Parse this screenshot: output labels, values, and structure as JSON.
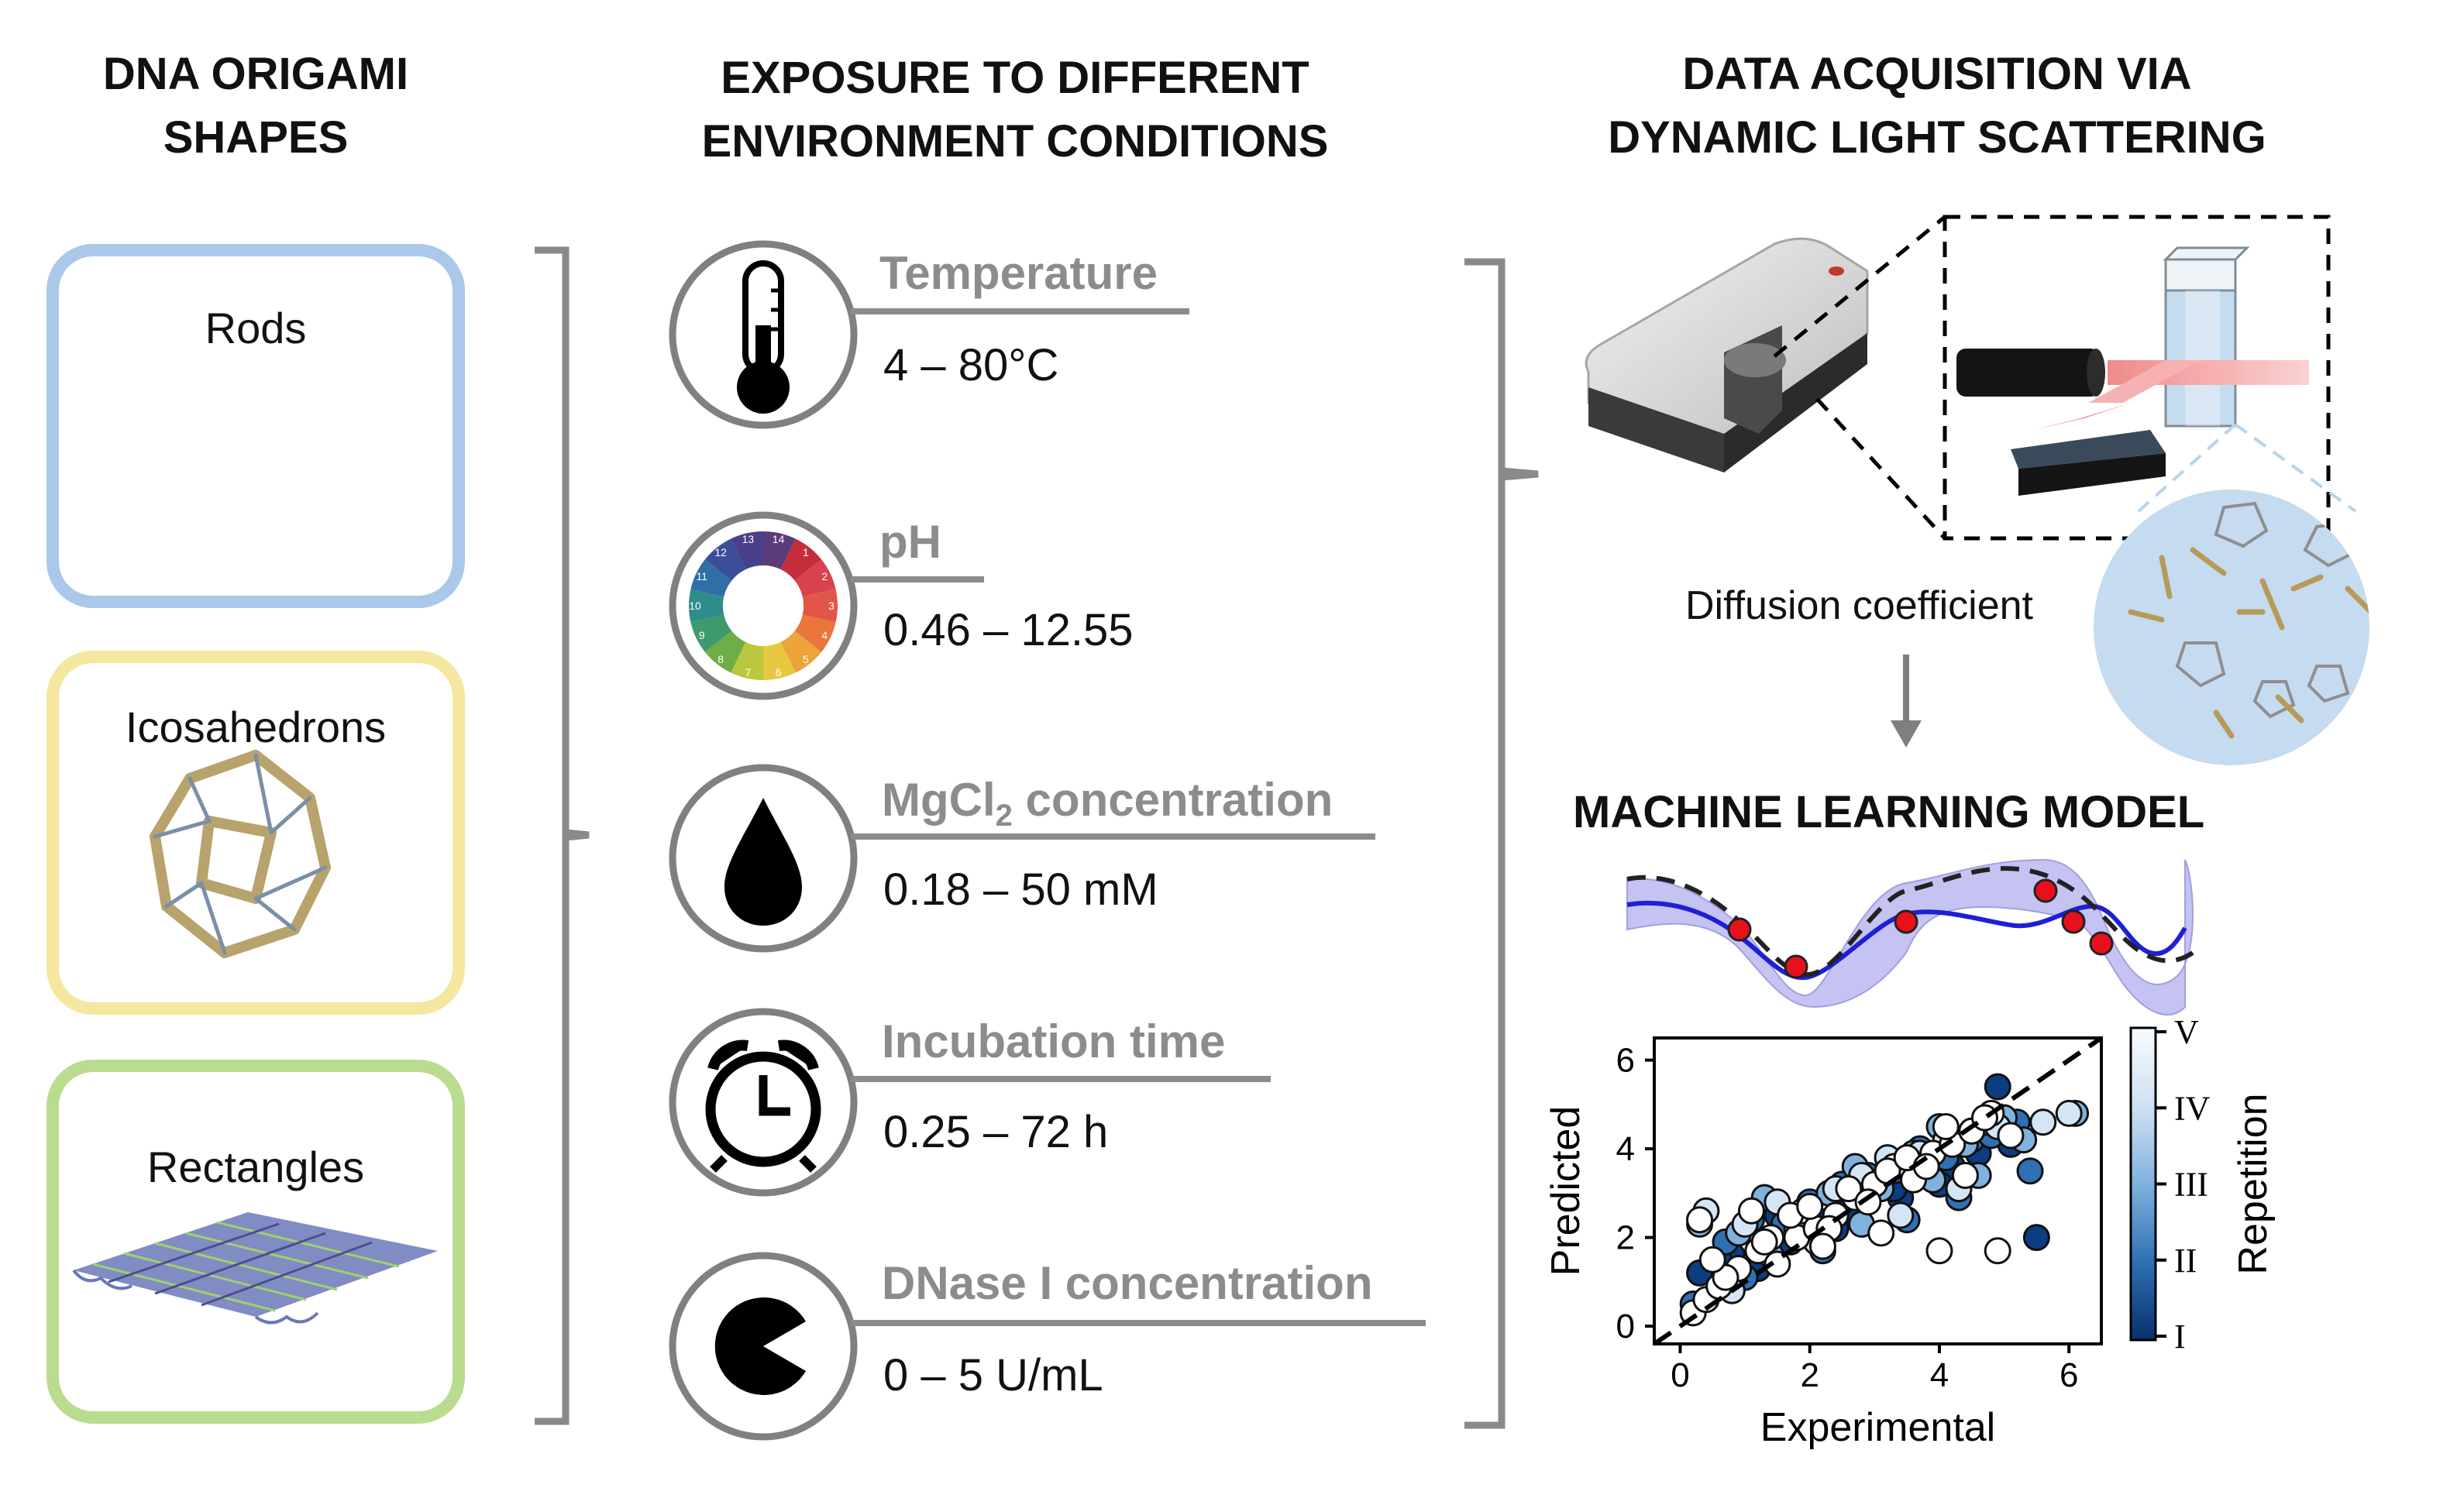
{
  "headers": {
    "shapes": [
      "DNA ORIGAMI",
      "SHAPES"
    ],
    "conditions": [
      "EXPOSURE TO DIFFERENT",
      "ENVIRONMENT CONDITIONS"
    ],
    "acquisition": [
      "DATA ACQUISITION VIA",
      "DYNAMIC LIGHT SCATTERING"
    ]
  },
  "shapes": [
    {
      "label": "Rods",
      "color": "#a9c8ea"
    },
    {
      "label": "Icosahedrons",
      "color": "#f5e7a0"
    },
    {
      "label": "Rectangles",
      "color": "#b9dc8f"
    }
  ],
  "conditions": [
    {
      "name": "Temperature",
      "range": "4 – 80°C",
      "icon": "thermometer-icon"
    },
    {
      "name": "pH",
      "range": "0.46 – 12.55",
      "icon": "ph-wheel-icon"
    },
    {
      "name": "MgCl",
      "sub": "2",
      "name_suffix": " concentration",
      "range": "0.18 – 50 mM",
      "icon": "droplet-icon"
    },
    {
      "name": "Incubation time",
      "range": "0.25 – 72 h",
      "icon": "alarm-clock-icon"
    },
    {
      "name": "DNase I concentration",
      "range": "0 – 5 U/mL",
      "icon": "pacman-icon"
    }
  ],
  "diffusion_label": "Diffusion coefficient",
  "ml_title": "MACHINE LEARNING MODEL",
  "ph_numbers": [
    "14",
    "1",
    "2",
    "3",
    "4",
    "5",
    "6",
    "7",
    "8",
    "9",
    "10",
    "11",
    "12",
    "13"
  ],
  "chart_data": {
    "type": "scatter",
    "xlabel": "Experimental",
    "ylabel": "Predicted",
    "xticks": [
      "0",
      "2",
      "4",
      "6"
    ],
    "yticks": [
      "0",
      "2",
      "4",
      "6"
    ],
    "xlim": [
      -0.4,
      6.5
    ],
    "ylim": [
      -0.4,
      6.5
    ],
    "colorbar_label": "Repetition",
    "colorbar_ticks": [
      "I",
      "II",
      "III",
      "IV",
      "V"
    ],
    "diagonal": "y = x (dashed)",
    "note": "Several hundred points; sampled representative values",
    "series": [
      {
        "color": "#0b3d80",
        "x": [
          0.3,
          0.8,
          1.2,
          1.7,
          2.1,
          2.6,
          3.0,
          3.4,
          3.8,
          4.2,
          4.6,
          4.9,
          5.1,
          5.5,
          0.6,
          1.5,
          2.4,
          3.3,
          4.0,
          4.8
        ],
        "y": [
          1.2,
          1.6,
          1.3,
          1.9,
          2.4,
          2.6,
          3.3,
          2.9,
          3.5,
          3.6,
          3.9,
          5.4,
          4.1,
          2.0,
          1.5,
          2.5,
          2.2,
          3.1,
          3.2,
          4.4
        ]
      },
      {
        "color": "#2f70b4",
        "x": [
          0.2,
          0.7,
          1.1,
          1.6,
          2.0,
          2.5,
          2.9,
          3.3,
          3.7,
          4.1,
          4.5,
          4.8,
          5.2,
          5.4,
          1.0,
          2.2,
          3.5,
          4.3
        ],
        "y": [
          0.5,
          1.9,
          2.4,
          2.3,
          2.8,
          3.2,
          3.4,
          3.5,
          4.0,
          3.8,
          4.2,
          4.3,
          4.6,
          3.5,
          1.1,
          1.7,
          2.4,
          2.9
        ]
      },
      {
        "color": "#7fb2de",
        "x": [
          0.3,
          0.9,
          1.3,
          1.8,
          2.3,
          2.7,
          3.1,
          3.6,
          4.0,
          4.4,
          4.7,
          5.0,
          5.3,
          6.1,
          1.4,
          2.8,
          3.9,
          4.6
        ],
        "y": [
          2.3,
          2.1,
          2.9,
          2.2,
          3.0,
          3.6,
          3.1,
          3.9,
          4.5,
          4.1,
          4.6,
          4.7,
          4.2,
          4.8,
          1.6,
          2.3,
          3.3,
          3.4
        ]
      },
      {
        "color": "#d4e6f6",
        "x": [
          0.4,
          1.0,
          1.5,
          1.9,
          2.4,
          2.8,
          3.2,
          3.7,
          4.1,
          4.5,
          4.9,
          5.6,
          6.0,
          0.8,
          2.1,
          3.4,
          4.3
        ],
        "y": [
          2.6,
          2.3,
          2.8,
          2.6,
          3.1,
          3.4,
          3.8,
          3.9,
          4.2,
          4.4,
          4.5,
          4.6,
          4.8,
          0.8,
          1.9,
          2.5,
          3.1
        ]
      },
      {
        "color": "#ffffff",
        "x": [
          0.2,
          0.4,
          0.6,
          0.9,
          1.2,
          1.5,
          1.8,
          2.1,
          2.4,
          2.7,
          3.0,
          3.3,
          3.6,
          3.9,
          4.2,
          4.5,
          4.8,
          5.1,
          0.3,
          0.7,
          1.1,
          1.4,
          1.7,
          2.0,
          2.3,
          2.6,
          2.9,
          3.2,
          3.5,
          3.8,
          4.1,
          4.4,
          4.7,
          4.0,
          4.9,
          0.5,
          1.3,
          2.2,
          3.1
        ],
        "y": [
          0.3,
          0.6,
          0.9,
          1.3,
          1.7,
          1.4,
          2.0,
          2.2,
          2.5,
          2.9,
          3.2,
          3.6,
          3.3,
          3.9,
          4.1,
          4.4,
          4.8,
          4.3,
          2.4,
          1.1,
          2.6,
          2.0,
          2.5,
          2.7,
          2.2,
          3.1,
          2.8,
          3.5,
          3.8,
          3.6,
          4.5,
          3.4,
          4.7,
          1.7,
          1.7,
          1.5,
          1.9,
          1.8,
          2.1
        ]
      }
    ]
  }
}
